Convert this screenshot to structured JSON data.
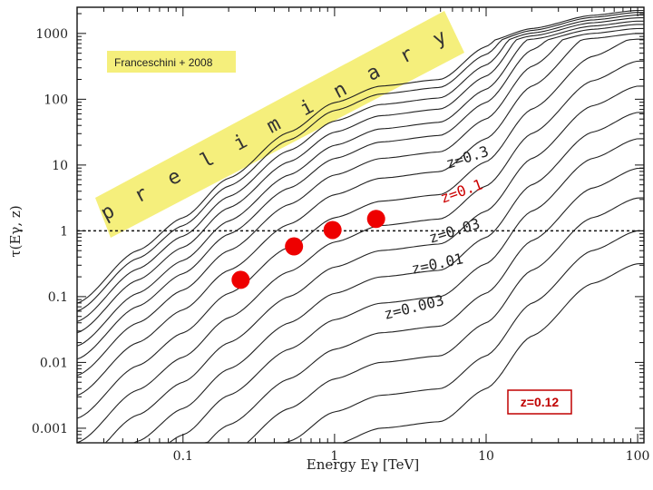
{
  "chart_data": {
    "type": "line",
    "title": "",
    "xlabel": "Energy Eγ [TeV]",
    "ylabel": "τ(Eγ, z)",
    "xscale": "log",
    "yscale": "log",
    "xlim": [
      0.02,
      110
    ],
    "ylim": [
      0.0006,
      2500
    ],
    "xticks": [
      {
        "v": 0.1,
        "label": "0.1"
      },
      {
        "v": 1,
        "label": "1"
      },
      {
        "v": 10,
        "label": "10"
      },
      {
        "v": 100,
        "label": "100"
      }
    ],
    "yticks": [
      {
        "v": 0.001,
        "label": "0.001"
      },
      {
        "v": 0.01,
        "label": "0.01"
      },
      {
        "v": 0.1,
        "label": "0.1"
      },
      {
        "v": 1,
        "label": "1"
      },
      {
        "v": 10,
        "label": "10"
      },
      {
        "v": 100,
        "label": "100"
      },
      {
        "v": 1000,
        "label": "1000"
      }
    ],
    "reference_line": {
      "y": 1,
      "style": "dashed"
    },
    "curve_shape": {
      "note": "optical depth curves for a grid of redshifts, log-log",
      "x": [
        0.02,
        0.05,
        0.1,
        0.2,
        0.5,
        1,
        2,
        5,
        10,
        20,
        50,
        100
      ],
      "base_log_tau": [
        -3.1,
        -2.3,
        -1.8,
        -1.2,
        -0.5,
        -0.05,
        0.2,
        0.3,
        0.8,
        1.6,
        2.4,
        2.7
      ],
      "offsets_log_tau": [
        -3.2,
        -2.7,
        -2.2,
        -1.75,
        -1.3,
        -0.9,
        -0.5,
        -0.12,
        0.25,
        0.6,
        0.9,
        1.15,
        1.35,
        1.55,
        1.72,
        1.88,
        2.0
      ]
    },
    "labeled_curves": [
      {
        "label": "z=0.003",
        "color": "#222222"
      },
      {
        "label": "z=0.01",
        "color": "#222222"
      },
      {
        "label": "z=0.03",
        "color": "#222222"
      },
      {
        "label": "z=0.1",
        "color": "#cc0000"
      },
      {
        "label": "z=0.3",
        "color": "#222222"
      }
    ],
    "series": [
      {
        "name": "measured points",
        "color": "#ee0000",
        "points": [
          {
            "x": 0.24,
            "y": 0.18
          },
          {
            "x": 0.54,
            "y": 0.58
          },
          {
            "x": 0.97,
            "y": 1.03
          },
          {
            "x": 1.88,
            "y": 1.52
          }
        ]
      }
    ]
  },
  "annotations": {
    "credit": "Franceschini + 2008",
    "preliminary_letters": [
      "p",
      "r",
      "e",
      "l",
      "i",
      "m",
      "i",
      "n",
      "a",
      "r",
      "y"
    ],
    "redshift_box": "z=0.12"
  },
  "colors": {
    "banner": "#f5ef7c",
    "highlight": "#cc0000",
    "curves": "#222222"
  }
}
